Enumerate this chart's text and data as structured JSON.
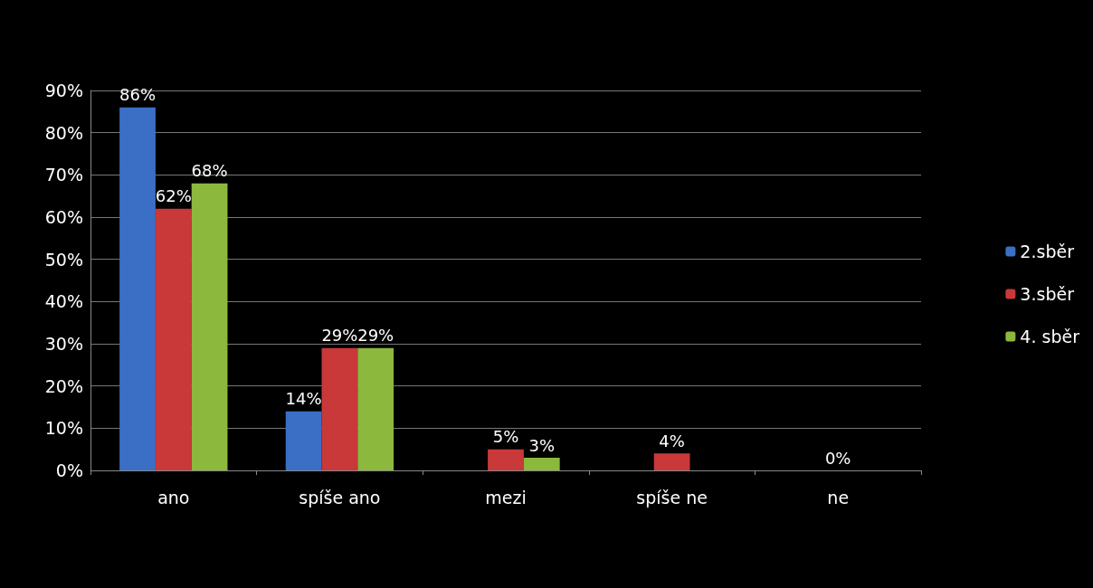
{
  "chart_data": {
    "type": "bar",
    "categories": [
      "ano",
      "spíše ano",
      "mezi",
      "spíše ne",
      "ne"
    ],
    "series": [
      {
        "name": "2.sběr",
        "color": "#3b6fc6",
        "values": [
          86,
          14,
          null,
          null,
          null
        ],
        "value_labels": [
          "86%",
          "14%",
          null,
          null,
          null
        ]
      },
      {
        "name": "3.sběr",
        "color": "#c9393a",
        "values": [
          62,
          29,
          5,
          4,
          0
        ],
        "value_labels": [
          "62%",
          "29%",
          "5%",
          "4%",
          "0%"
        ]
      },
      {
        "name": "4. sběr",
        "color": "#8cb83e",
        "values": [
          68,
          29,
          3,
          null,
          null
        ],
        "value_labels": [
          "68%",
          "29%",
          "3%",
          null,
          null
        ]
      }
    ],
    "ylim": [
      0,
      90
    ],
    "yticks": [
      {
        "value": 0,
        "label": "0%"
      },
      {
        "value": 10,
        "label": "10%"
      },
      {
        "value": 20,
        "label": "20%"
      },
      {
        "value": 30,
        "label": "30%"
      },
      {
        "value": 40,
        "label": "40%"
      },
      {
        "value": 50,
        "label": "50%"
      },
      {
        "value": 60,
        "label": "60%"
      },
      {
        "value": 70,
        "label": "70%"
      },
      {
        "value": 80,
        "label": "80%"
      },
      {
        "value": 90,
        "label": "90%"
      }
    ],
    "grid": "y",
    "legend": "right"
  }
}
